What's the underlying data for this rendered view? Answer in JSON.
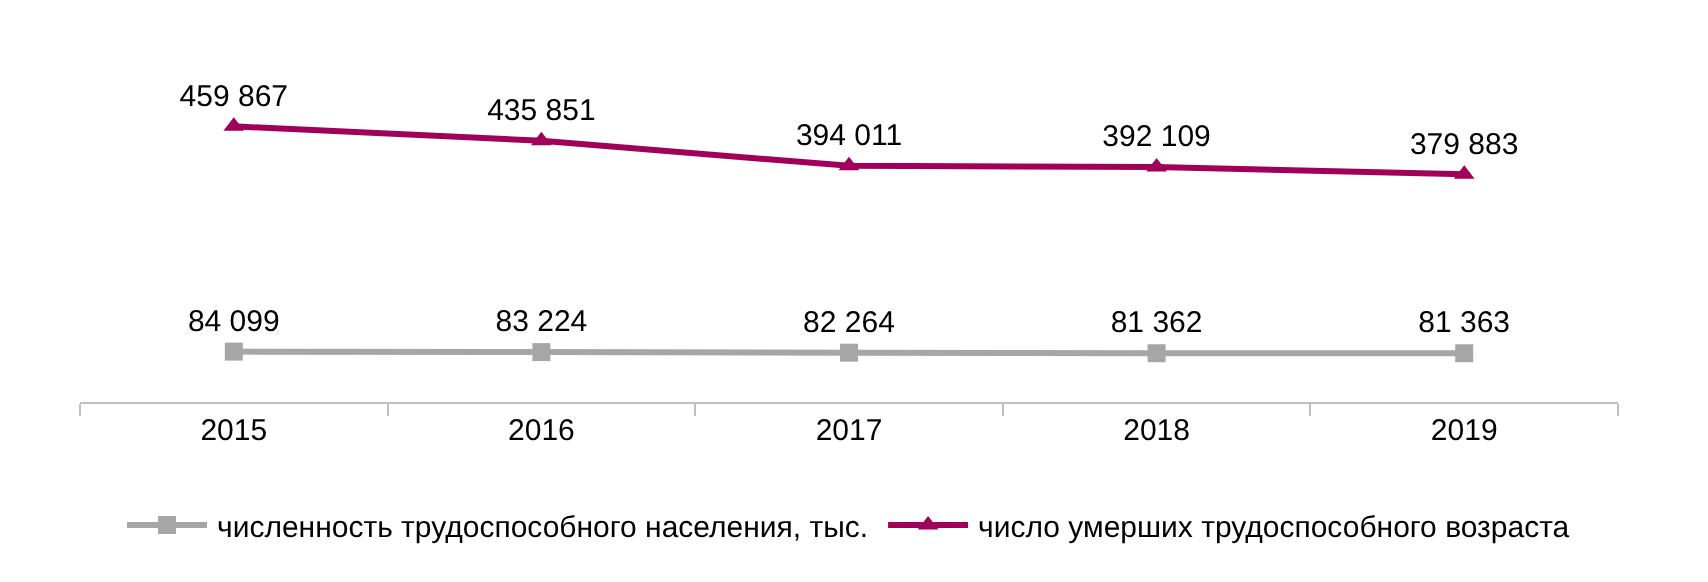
{
  "chart_data": {
    "type": "line",
    "categories": [
      "2015",
      "2016",
      "2017",
      "2018",
      "2019"
    ],
    "series": [
      {
        "name": "численность трудоспособного населения, тыс.",
        "color": "#a6a6a6",
        "marker": "square",
        "values": [
          84099,
          83224,
          82264,
          81362,
          81363
        ],
        "value_labels": [
          "84 099",
          "83 224",
          "82 264",
          "81 362",
          "81 363"
        ]
      },
      {
        "name": "число умерших трудоспособного возраста",
        "color": "#a0005a",
        "marker": "triangle",
        "values": [
          459867,
          435851,
          394011,
          392109,
          379883
        ],
        "value_labels": [
          "459 867",
          "435 851",
          "394 011",
          "392 109",
          "379 883"
        ]
      }
    ],
    "tick_labels": "x",
    "grid": false,
    "legend": "bottom"
  }
}
